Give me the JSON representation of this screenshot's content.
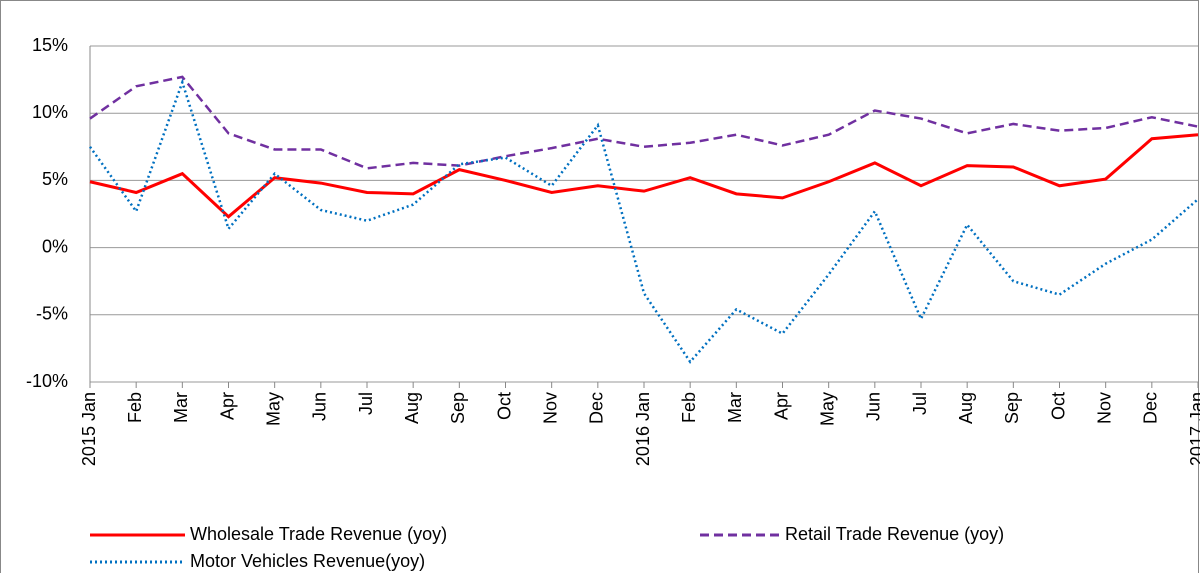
{
  "chart_data": {
    "type": "line",
    "categories": [
      "2015 Jan",
      "Feb",
      "Mar",
      "Apr",
      "May",
      "Jun",
      "Jul",
      "Aug",
      "Sep",
      "Oct",
      "Nov",
      "Dec",
      "2016 Jan",
      "Feb",
      "Mar",
      "Apr",
      "May",
      "Jun",
      "Jul",
      "Aug",
      "Sep",
      "Oct",
      "Nov",
      "Dec",
      "2017 Jan"
    ],
    "series": [
      {
        "name": "Wholesale Trade Revenue (yoy)",
        "color": "#ff0000",
        "dash": "solid",
        "values": [
          4.9,
          4.1,
          5.5,
          2.3,
          5.2,
          4.8,
          4.1,
          4.0,
          5.8,
          5.0,
          4.1,
          4.6,
          4.2,
          5.2,
          4.0,
          3.7,
          4.9,
          6.3,
          4.6,
          6.1,
          6.0,
          4.6,
          5.1,
          8.1,
          8.4
        ]
      },
      {
        "name": "Retail Trade Revenue (yoy)",
        "color": "#7030a0",
        "dash": "dashed",
        "values": [
          9.6,
          12.0,
          12.7,
          8.5,
          7.3,
          7.3,
          5.9,
          6.3,
          6.1,
          6.8,
          7.4,
          8.1,
          7.5,
          7.8,
          8.4,
          7.6,
          8.4,
          10.2,
          9.6,
          8.5,
          9.2,
          8.7,
          8.9,
          9.7,
          9.0
        ]
      },
      {
        "name": "Motor Vehicles Revenue(yoy)",
        "color": "#0070c0",
        "dash": "dotted",
        "values": [
          7.5,
          2.7,
          12.3,
          1.4,
          5.5,
          2.8,
          2.0,
          3.2,
          6.2,
          6.7,
          4.6,
          9.1,
          -3.4,
          -8.5,
          -4.6,
          -6.4,
          -2.0,
          2.7,
          -5.3,
          1.7,
          -2.5,
          -3.5,
          -1.2,
          0.6,
          3.6
        ]
      }
    ],
    "ylim": [
      -10,
      15
    ],
    "yticks": [
      {
        "value": -10,
        "label": "-10%"
      },
      {
        "value": -5,
        "label": "-5%"
      },
      {
        "value": 0,
        "label": "0%"
      },
      {
        "value": 5,
        "label": "5%"
      },
      {
        "value": 10,
        "label": "10%"
      },
      {
        "value": 15,
        "label": "15%"
      }
    ],
    "grid": true,
    "legend": "bottom"
  }
}
